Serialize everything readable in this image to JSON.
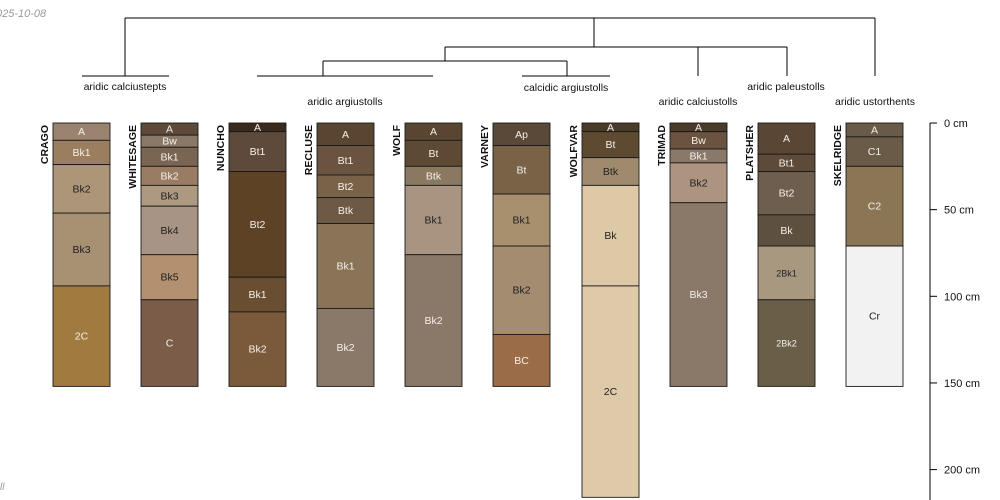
{
  "date_stamp": "025-10-08",
  "footer_stamp": "ll",
  "profiles": [
    {
      "name": "CRAGO",
      "horizons": [
        {
          "name": "A",
          "top": 0,
          "bottom": 10,
          "color": "#9a8470"
        },
        {
          "name": "Bk1",
          "top": 10,
          "bottom": 24,
          "color": "#9a7e5e"
        },
        {
          "name": "Bk2",
          "top": 24,
          "bottom": 52,
          "color": "#ad9678"
        },
        {
          "name": "Bk3",
          "top": 52,
          "bottom": 94,
          "color": "#a89072"
        },
        {
          "name": "2C",
          "top": 94,
          "bottom": 152,
          "color": "#a07a3e"
        }
      ]
    },
    {
      "name": "WHITESAGE",
      "horizons": [
        {
          "name": "A",
          "top": 0,
          "bottom": 7,
          "color": "#5e4a38"
        },
        {
          "name": "Bw",
          "top": 7,
          "bottom": 14,
          "color": "#8a7868"
        },
        {
          "name": "Bk1",
          "top": 14,
          "bottom": 25,
          "color": "#7a6452"
        },
        {
          "name": "Bk2",
          "top": 25,
          "bottom": 36,
          "color": "#9a7c64"
        },
        {
          "name": "Bk3",
          "top": 36,
          "bottom": 48,
          "color": "#ad9880"
        },
        {
          "name": "Bk4",
          "top": 48,
          "bottom": 76,
          "color": "#a89484"
        },
        {
          "name": "Bk5",
          "top": 76,
          "bottom": 102,
          "color": "#b39070"
        },
        {
          "name": "C",
          "top": 102,
          "bottom": 152,
          "color": "#7a5c48"
        }
      ]
    },
    {
      "name": "NUNCHO",
      "horizons": [
        {
          "name": "A",
          "top": 0,
          "bottom": 5,
          "color": "#3a2a1e"
        },
        {
          "name": "Bt1",
          "top": 5,
          "bottom": 28,
          "color": "#5e4a3a"
        },
        {
          "name": "Bt2",
          "top": 28,
          "bottom": 89,
          "color": "#5e4226"
        },
        {
          "name": "Bk1",
          "top": 89,
          "bottom": 109,
          "color": "#6a4e32"
        },
        {
          "name": "Bk2",
          "top": 109,
          "bottom": 152,
          "color": "#7a5a3a"
        }
      ]
    },
    {
      "name": "RECLUSE",
      "horizons": [
        {
          "name": "A",
          "top": 0,
          "bottom": 13,
          "color": "#5a4630"
        },
        {
          "name": "Bt1",
          "top": 13,
          "bottom": 30,
          "color": "#6a5440"
        },
        {
          "name": "Bt2",
          "top": 30,
          "bottom": 43,
          "color": "#7a6248"
        },
        {
          "name": "Btk",
          "top": 43,
          "bottom": 58,
          "color": "#6e5a44"
        },
        {
          "name": "Bk1",
          "top": 58,
          "bottom": 107,
          "color": "#8a7458"
        },
        {
          "name": "Bk2",
          "top": 107,
          "bottom": 152,
          "color": "#8a7868"
        }
      ]
    },
    {
      "name": "WOLF",
      "horizons": [
        {
          "name": "A",
          "top": 0,
          "bottom": 10,
          "color": "#5a4630"
        },
        {
          "name": "Bt",
          "top": 10,
          "bottom": 25,
          "color": "#5e4a34"
        },
        {
          "name": "Btk",
          "top": 25,
          "bottom": 36,
          "color": "#8a7860"
        },
        {
          "name": "Bk1",
          "top": 36,
          "bottom": 76,
          "color": "#a89480"
        },
        {
          "name": "Bk2",
          "top": 76,
          "bottom": 152,
          "color": "#8a7868"
        }
      ]
    },
    {
      "name": "VARNEY",
      "horizons": [
        {
          "name": "Ap",
          "top": 0,
          "bottom": 13,
          "color": "#5a4838"
        },
        {
          "name": "Bt",
          "top": 13,
          "bottom": 41,
          "color": "#7a6246"
        },
        {
          "name": "Bk1",
          "top": 41,
          "bottom": 71,
          "color": "#a8906e"
        },
        {
          "name": "Bk2",
          "top": 71,
          "bottom": 122,
          "color": "#a48c70"
        },
        {
          "name": "BC",
          "top": 122,
          "bottom": 152,
          "color": "#9a6c48"
        }
      ]
    },
    {
      "name": "WOLFVAR",
      "horizons": [
        {
          "name": "A",
          "top": 0,
          "bottom": 5,
          "color": "#4a3a2a"
        },
        {
          "name": "Bt",
          "top": 5,
          "bottom": 20,
          "color": "#5e4a30"
        },
        {
          "name": "Btk",
          "top": 20,
          "bottom": 36,
          "color": "#a08a6e"
        },
        {
          "name": "Bk",
          "top": 36,
          "bottom": 94,
          "color": "#dec9a6"
        },
        {
          "name": "2C",
          "top": 94,
          "bottom": 216,
          "color": "#dec9a8"
        }
      ]
    },
    {
      "name": "TRIMAD",
      "horizons": [
        {
          "name": "A",
          "top": 0,
          "bottom": 5,
          "color": "#4a3a2a"
        },
        {
          "name": "Bw",
          "top": 5,
          "bottom": 15,
          "color": "#6a5440"
        },
        {
          "name": "Bk1",
          "top": 15,
          "bottom": 23,
          "color": "#8a7868"
        },
        {
          "name": "Bk2",
          "top": 23,
          "bottom": 46,
          "color": "#ad9480"
        },
        {
          "name": "Bk3",
          "top": 46,
          "bottom": 152,
          "color": "#8a7868"
        }
      ]
    },
    {
      "name": "PLATSHER",
      "horizons": [
        {
          "name": "A",
          "top": 0,
          "bottom": 18,
          "color": "#5a4634"
        },
        {
          "name": "Bt1",
          "top": 18,
          "bottom": 28,
          "color": "#5e4a38"
        },
        {
          "name": "Bt2",
          "top": 28,
          "bottom": 53,
          "color": "#6e5e4e"
        },
        {
          "name": "Bk",
          "top": 53,
          "bottom": 71,
          "color": "#5e503e"
        },
        {
          "name": "2Bk1",
          "top": 71,
          "bottom": 102,
          "color": "#a89880"
        },
        {
          "name": "2Bk2",
          "top": 102,
          "bottom": 152,
          "color": "#6a5e48"
        }
      ]
    },
    {
      "name": "SKELRIDGE",
      "horizons": [
        {
          "name": "A",
          "top": 0,
          "bottom": 8,
          "color": "#6a5a48"
        },
        {
          "name": "C1",
          "top": 8,
          "bottom": 25,
          "color": "#6a5a48"
        },
        {
          "name": "C2",
          "top": 25,
          "bottom": 71,
          "color": "#8a7654"
        },
        {
          "name": "Cr",
          "top": 71,
          "bottom": 152,
          "color": "#f2f2f2"
        }
      ]
    }
  ],
  "group_labels": [
    "aridic calciustepts",
    "aridic argiustolls",
    "calcidic argiustolls",
    "aridic calciustolls",
    "aridic paleustolls",
    "aridic ustorthents"
  ],
  "depth_axis": {
    "units": "cm",
    "ticks": [
      0,
      50,
      100,
      150,
      200
    ],
    "tick_labels": [
      "0 cm",
      "50 cm",
      "100 cm",
      "150 cm",
      "200 cm"
    ]
  }
}
